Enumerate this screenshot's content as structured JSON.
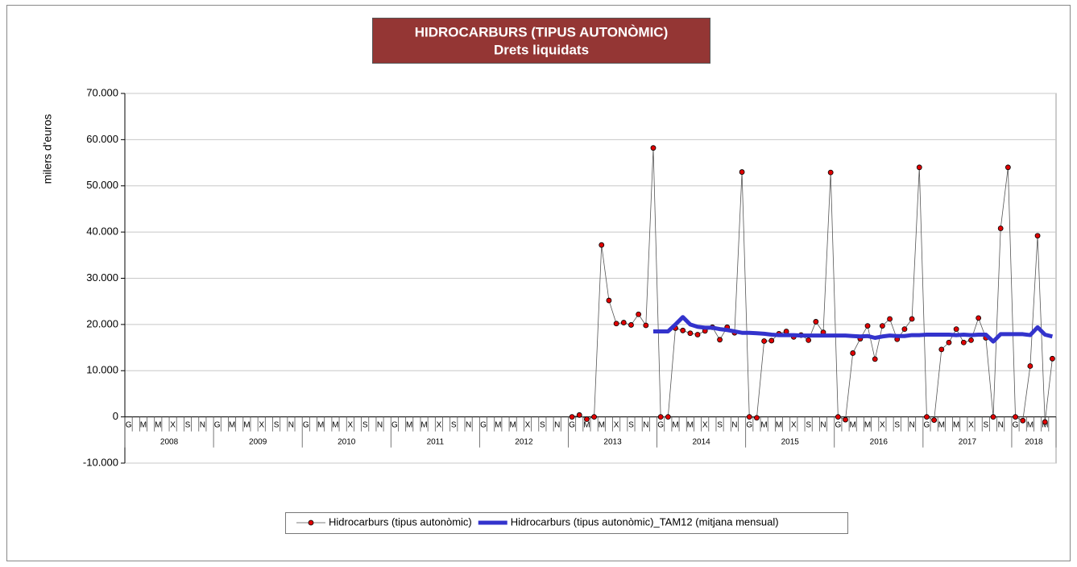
{
  "chart_data": {
    "type": "line",
    "title": "HIDROCARBURS (TIPUS AUTONÒMIC)",
    "subtitle": "Drets liquidats",
    "y_label": "milers d'euros",
    "categories": [
      "G",
      null,
      "M",
      null,
      "M",
      null,
      "X",
      null,
      "S",
      null,
      "N",
      null,
      "G",
      null,
      "M",
      null,
      "M",
      null,
      "X",
      null,
      "S",
      null,
      "N",
      null,
      "G",
      null,
      "M",
      null,
      "M",
      null,
      "X",
      null,
      "S",
      null,
      "N",
      null,
      "G",
      null,
      "M",
      null,
      "M",
      null,
      "X",
      null,
      "S",
      null,
      "N",
      null,
      "G",
      null,
      "M",
      null,
      "M",
      null,
      "X",
      null,
      "S",
      null,
      "N",
      null,
      "G",
      null,
      "M",
      null,
      "M",
      null,
      "X",
      null,
      "S",
      null,
      "N",
      null,
      "G",
      null,
      "M",
      null,
      "M",
      null,
      "X",
      null,
      "S",
      null,
      "N",
      null,
      "G",
      null,
      "M",
      null,
      "M",
      null,
      "X",
      null,
      "S",
      null,
      "N",
      null,
      "G",
      null,
      "M",
      null,
      "M",
      null,
      "X",
      null,
      "S",
      null,
      "N",
      null,
      "G",
      null,
      "M",
      null,
      "M",
      null,
      "X",
      null,
      "S",
      null,
      "N",
      null,
      "G",
      null,
      "M",
      null,
      "M",
      null
    ],
    "year_groups": [
      "2008",
      "2009",
      "2010",
      "2011",
      "2012",
      "2013",
      "2014",
      "2015",
      "2016",
      "2017",
      "2018"
    ],
    "series": [
      {
        "name": "Hidrocarburs (tipus autonòmic)",
        "color": "#e00000",
        "line_color": "#555555",
        "marker": true,
        "values": [
          null,
          null,
          null,
          null,
          null,
          null,
          null,
          null,
          null,
          null,
          null,
          null,
          null,
          null,
          null,
          null,
          null,
          null,
          null,
          null,
          null,
          null,
          null,
          null,
          null,
          null,
          null,
          null,
          null,
          null,
          null,
          null,
          null,
          null,
          null,
          null,
          null,
          null,
          null,
          null,
          null,
          null,
          null,
          null,
          null,
          null,
          null,
          null,
          null,
          null,
          null,
          null,
          null,
          null,
          null,
          null,
          null,
          null,
          null,
          null,
          0,
          400,
          -500,
          0,
          37200,
          25200,
          20200,
          20400,
          19900,
          22200,
          19800,
          58200,
          0,
          0,
          19200,
          18700,
          18100,
          17800,
          18600,
          19400,
          16700,
          19400,
          18200,
          53000,
          0,
          -200,
          16400,
          16500,
          18000,
          18500,
          17300,
          17700,
          16600,
          20600,
          18300,
          52900,
          0,
          -600,
          13800,
          16900,
          19700,
          12500,
          19700,
          21200,
          16800,
          19000,
          21200,
          54000,
          0,
          -700,
          14600,
          16100,
          19000,
          16100,
          16600,
          21400,
          17100,
          0,
          40800,
          54000,
          0,
          -800,
          11000,
          39200,
          -1100,
          12600
        ]
      },
      {
        "name": "Hidrocarburs (tipus autonòmic)_TAM12 (mitjana mensual)",
        "color": "#3333cc",
        "marker": false,
        "values": [
          null,
          null,
          null,
          null,
          null,
          null,
          null,
          null,
          null,
          null,
          null,
          null,
          null,
          null,
          null,
          null,
          null,
          null,
          null,
          null,
          null,
          null,
          null,
          null,
          null,
          null,
          null,
          null,
          null,
          null,
          null,
          null,
          null,
          null,
          null,
          null,
          null,
          null,
          null,
          null,
          null,
          null,
          null,
          null,
          null,
          null,
          null,
          null,
          null,
          null,
          null,
          null,
          null,
          null,
          null,
          null,
          null,
          null,
          null,
          null,
          null,
          null,
          null,
          null,
          null,
          null,
          null,
          null,
          null,
          null,
          null,
          18500,
          18500,
          18500,
          20000,
          21600,
          20000,
          19500,
          19300,
          19300,
          19000,
          18800,
          18500,
          18200,
          18200,
          18100,
          18000,
          17800,
          17700,
          17700,
          17700,
          17600,
          17600,
          17600,
          17600,
          17600,
          17600,
          17600,
          17500,
          17400,
          17500,
          17100,
          17400,
          17600,
          17500,
          17500,
          17700,
          17700,
          17800,
          17800,
          17800,
          17800,
          17700,
          17800,
          17700,
          17800,
          17800,
          16300,
          17900,
          17900,
          17900,
          17900,
          17700,
          19400,
          17800,
          17400
        ]
      }
    ],
    "ylim": [
      -10000,
      70000
    ],
    "yticks": [
      {
        "value": -10000,
        "label": "-10.000"
      },
      0,
      {
        "value": 10000,
        "label": "10.000"
      },
      {
        "value": 20000,
        "label": "20.000"
      },
      {
        "value": 30000,
        "label": "30.000"
      },
      {
        "value": 40000,
        "label": "40.000"
      },
      {
        "value": 50000,
        "label": "50.000"
      },
      {
        "value": 60000,
        "label": "60.000"
      },
      {
        "value": 70000,
        "label": "70.000"
      }
    ],
    "grid": true,
    "legend": "bottom"
  }
}
